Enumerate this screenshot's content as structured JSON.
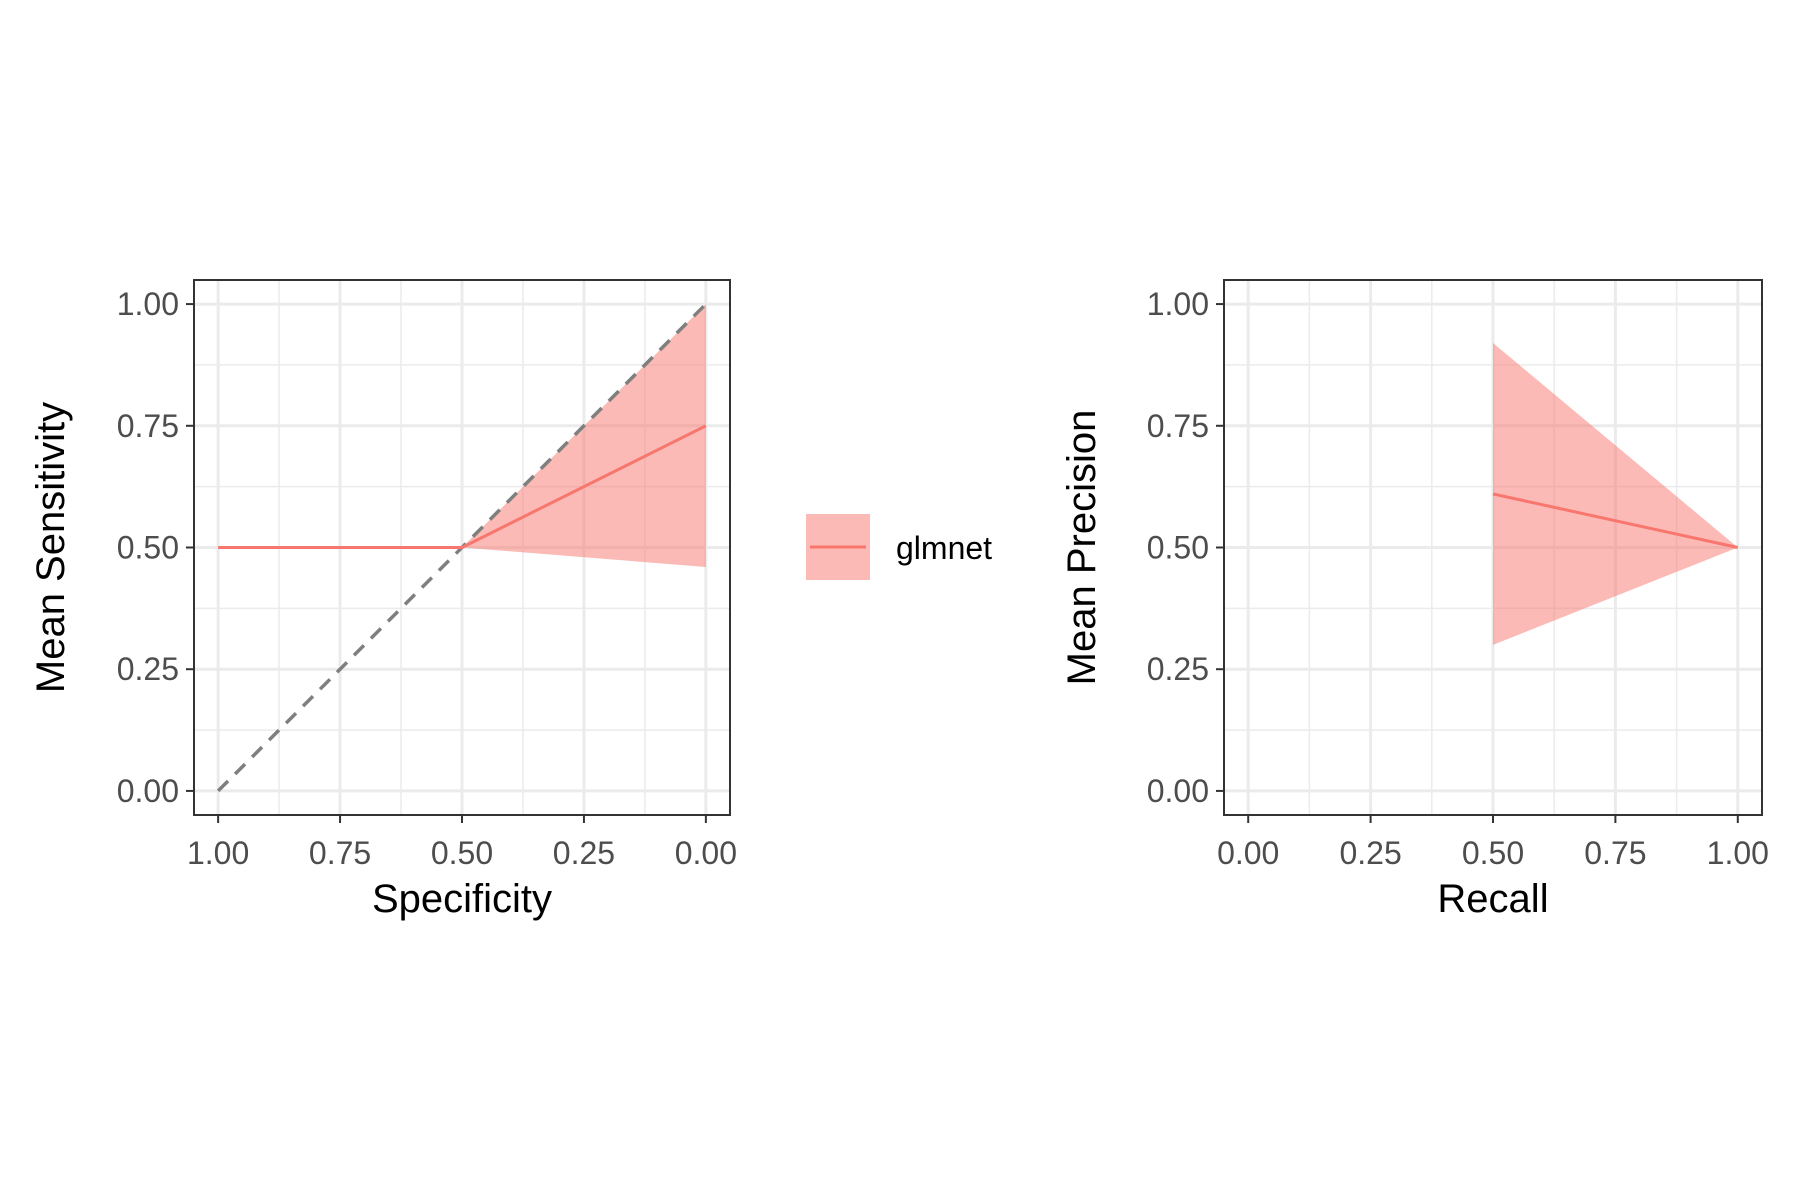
{
  "colors": {
    "series": "#F8766D",
    "ribbon": "#F8766D",
    "reference_line": "#7f7f7f",
    "grid": "#ebebeb",
    "panel_border": "#333333",
    "tick_label": "#4d4d4d"
  },
  "legend": {
    "position": "right of first panel",
    "entries": [
      "glmnet"
    ]
  },
  "chart_data": [
    {
      "type": "line",
      "title": "",
      "xlabel": "Specificity",
      "ylabel": "Mean Sensitivity",
      "xlim": [
        1,
        0
      ],
      "x_reversed": true,
      "ylim": [
        0,
        1
      ],
      "x_ticks": [
        "1.00",
        "0.75",
        "0.50",
        "0.25",
        "0.00"
      ],
      "y_ticks": [
        "0.00",
        "0.25",
        "0.50",
        "0.75",
        "1.00"
      ],
      "grid": true,
      "reference_line": {
        "style": "dashed",
        "from": [
          1,
          0
        ],
        "to": [
          0,
          1
        ]
      },
      "series": [
        {
          "name": "glmnet",
          "x": [
            1.0,
            0.5,
            0.0
          ],
          "y": [
            0.5,
            0.5,
            0.75
          ],
          "ribbon_lower": [
            0.5,
            0.5,
            0.46
          ],
          "ribbon_upper": [
            0.5,
            0.5,
            1.0
          ]
        }
      ]
    },
    {
      "type": "line",
      "title": "",
      "xlabel": "Recall",
      "ylabel": "Mean Precision",
      "xlim": [
        0,
        1
      ],
      "ylim": [
        0,
        1
      ],
      "x_ticks": [
        "0.00",
        "0.25",
        "0.50",
        "0.75",
        "1.00"
      ],
      "y_ticks": [
        "0.00",
        "0.25",
        "0.50",
        "0.75",
        "1.00"
      ],
      "grid": true,
      "series": [
        {
          "name": "glmnet",
          "x": [
            0.5,
            1.0
          ],
          "y": [
            0.61,
            0.5
          ],
          "ribbon_lower": [
            0.3,
            0.5
          ],
          "ribbon_upper": [
            0.92,
            0.5
          ]
        }
      ]
    }
  ]
}
